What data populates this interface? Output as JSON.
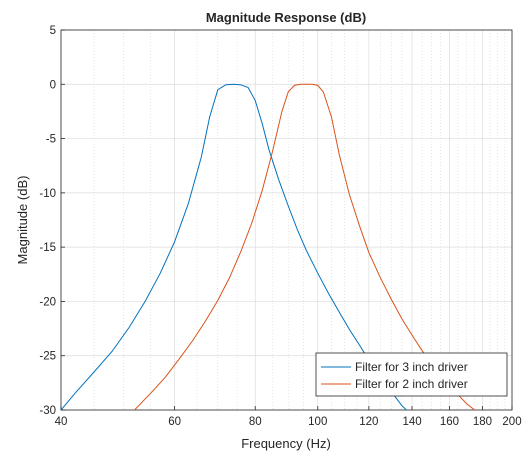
{
  "chart_data": {
    "type": "line",
    "title": "Magnitude Response (dB)",
    "xlabel": "Frequency (Hz)",
    "ylabel": "Magnitude (dB)",
    "xscale": "log",
    "xlim": [
      40,
      200
    ],
    "ylim": [
      -30,
      5
    ],
    "x_ticks": [
      40,
      60,
      80,
      100,
      120,
      140,
      160,
      180,
      200
    ],
    "y_ticks": [
      5,
      0,
      -5,
      -10,
      -15,
      -20,
      -25,
      -30
    ],
    "grid": true,
    "legend_position": "bottom-right",
    "series": [
      {
        "name": "Filter for 3 inch driver",
        "color": "#0072BD",
        "x": [
          40,
          42,
          45,
          48,
          51,
          54,
          57,
          60,
          63,
          66,
          68,
          70,
          72,
          74,
          76,
          78,
          80,
          82,
          84,
          87,
          90,
          93,
          96,
          100,
          104,
          108,
          112,
          116,
          120,
          125,
          130,
          135,
          140
        ],
        "y": [
          -30,
          -28.5,
          -26.5,
          -24.6,
          -22.4,
          -20,
          -17.4,
          -14.5,
          -11,
          -6.7,
          -3,
          -0.5,
          -0.05,
          0,
          -0.05,
          -0.3,
          -1.5,
          -3.6,
          -6,
          -8.8,
          -11.2,
          -13.4,
          -15.3,
          -17.4,
          -19.3,
          -21,
          -22.6,
          -24,
          -25.4,
          -26.9,
          -28.3,
          -29.6,
          -30.5
        ]
      },
      {
        "name": "Filter for 2 inch driver",
        "color": "#D95319",
        "x": [
          52,
          55,
          58,
          61,
          64,
          67,
          70,
          73,
          76,
          79,
          82,
          85,
          88,
          90,
          92,
          94,
          96,
          98,
          100,
          102,
          105,
          108,
          112,
          116,
          120,
          125,
          130,
          135,
          140,
          145,
          150,
          155,
          160,
          165,
          170,
          175
        ],
        "y": [
          -30,
          -28.5,
          -27,
          -25.3,
          -23.6,
          -21.8,
          -19.9,
          -17.8,
          -15.4,
          -12.8,
          -9.8,
          -6.3,
          -2.5,
          -0.7,
          -0.1,
          0,
          0,
          0,
          -0.1,
          -0.7,
          -3,
          -6.5,
          -10.2,
          -13,
          -15.5,
          -17.8,
          -19.8,
          -21.6,
          -23.1,
          -24.5,
          -25.7,
          -26.8,
          -27.7,
          -28.6,
          -29.4,
          -30
        ]
      }
    ]
  }
}
